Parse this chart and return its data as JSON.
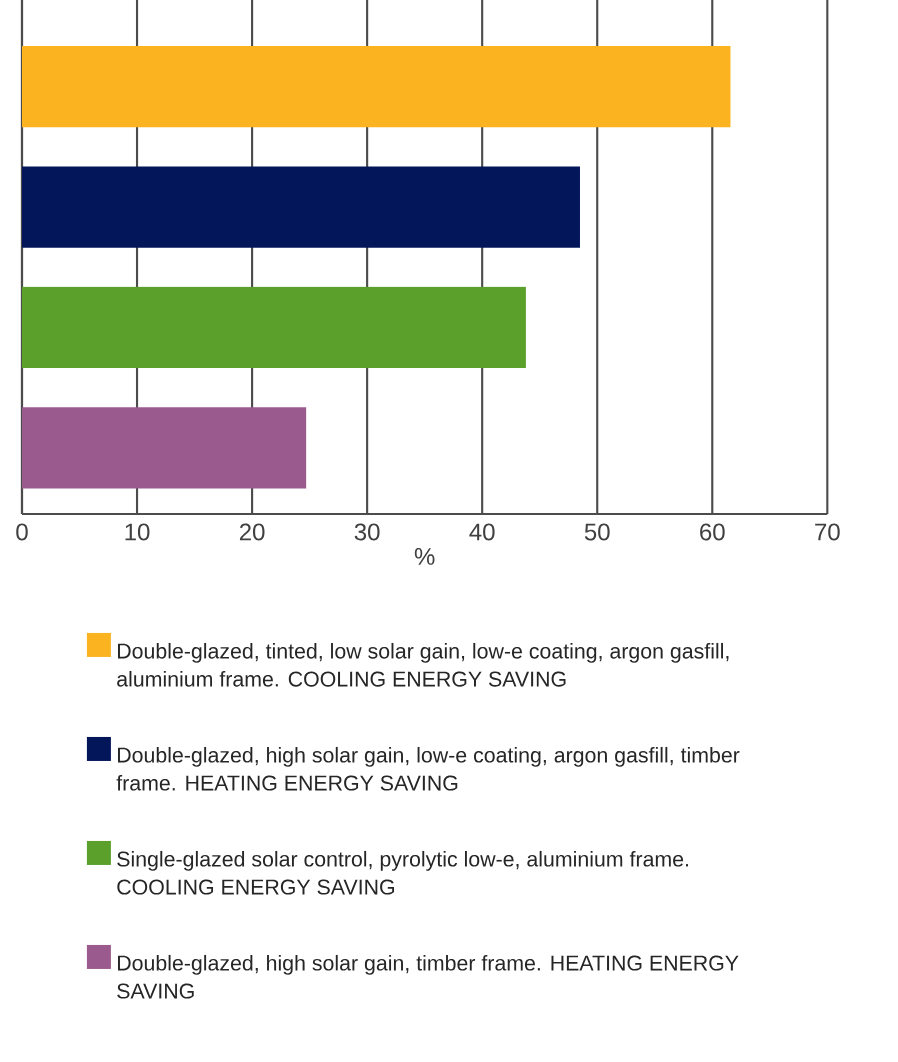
{
  "chart_data": {
    "type": "bar",
    "orientation": "horizontal",
    "xlabel": "%",
    "categories": [
      null,
      null,
      null,
      null
    ],
    "series": [
      {
        "name": "Double-glazed, tinted, low solar gain, low-e coating, argon gasfill, aluminium frame. COOLING ENERGY SAVING",
        "color": "#fbb41f",
        "values": [
          61.6,
          null,
          null,
          null
        ]
      },
      {
        "name": "Double-glazed, high solar gain, low-e coating, argon gasfill, timber frame. HEATING ENERGY SAVING",
        "color": "#04165a",
        "values": [
          null,
          48.5,
          null,
          null
        ]
      },
      {
        "name": "Single-glazed solar control, pyrolytic low-e, aluminium frame. COOLING ENERGY SAVING",
        "color": "#5aa02a",
        "values": [
          null,
          null,
          43.8,
          null
        ]
      },
      {
        "name": "Double-glazed, high solar gain, timber frame. HEATING ENERGY SAVING",
        "color": "#9a5a8e",
        "values": [
          null,
          null,
          null,
          24.7
        ]
      }
    ],
    "xlim": [
      0,
      70
    ],
    "xticks": [
      0,
      10,
      20,
      30,
      40,
      50,
      60,
      70
    ],
    "grid": "x",
    "legend": "bottom"
  }
}
